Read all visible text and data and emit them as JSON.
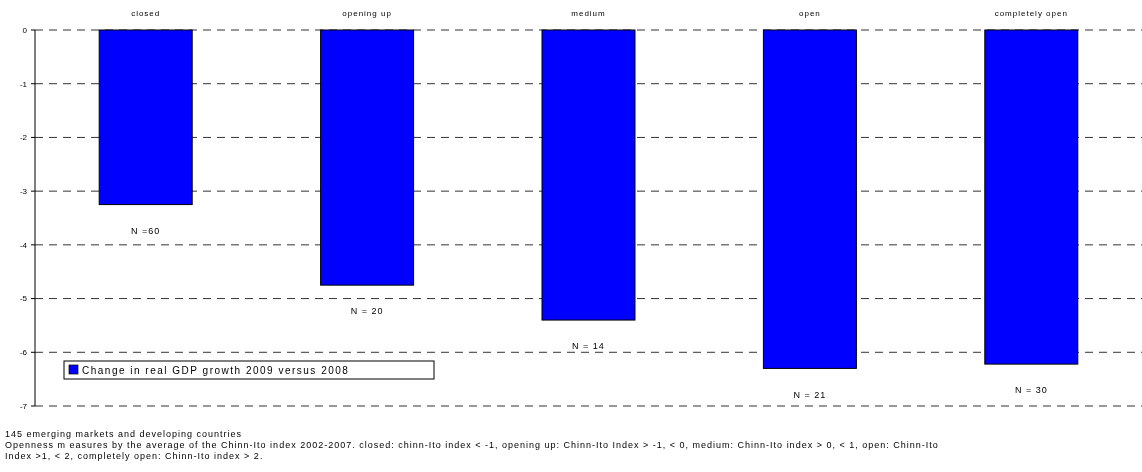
{
  "chart_data": {
    "type": "bar",
    "categories": [
      "closed",
      "opening up",
      "medium",
      "open",
      "completely open"
    ],
    "series": [
      {
        "name": "Change in real GDP growth 2009 versus 2008",
        "color": "#0000ff",
        "values": [
          -3.25,
          -4.75,
          -5.4,
          -6.3,
          -6.22
        ]
      }
    ],
    "ylim": [
      -7,
      0
    ],
    "yticks": [
      -7,
      -6,
      -5,
      -4,
      -3,
      -2,
      -1,
      0
    ],
    "grid": "y",
    "legend": "bottom left",
    "annotations": [
      "N =60",
      "N = 20",
      "N = 14",
      "N = 21",
      "N = 30",
      "145 emerging markets and developing countries",
      "Openness m easures by the average of the Chinn-Ito index 2002-2007. closed: chinn-Ito index < -1, opening up: Chinn-Ito Index > -1, < 0, medium: Chinn-Ito index > 0, < 1, open: Chinn-Ito Index >1, < 2, completely open: Chinn-Ito index > 2."
    ]
  }
}
